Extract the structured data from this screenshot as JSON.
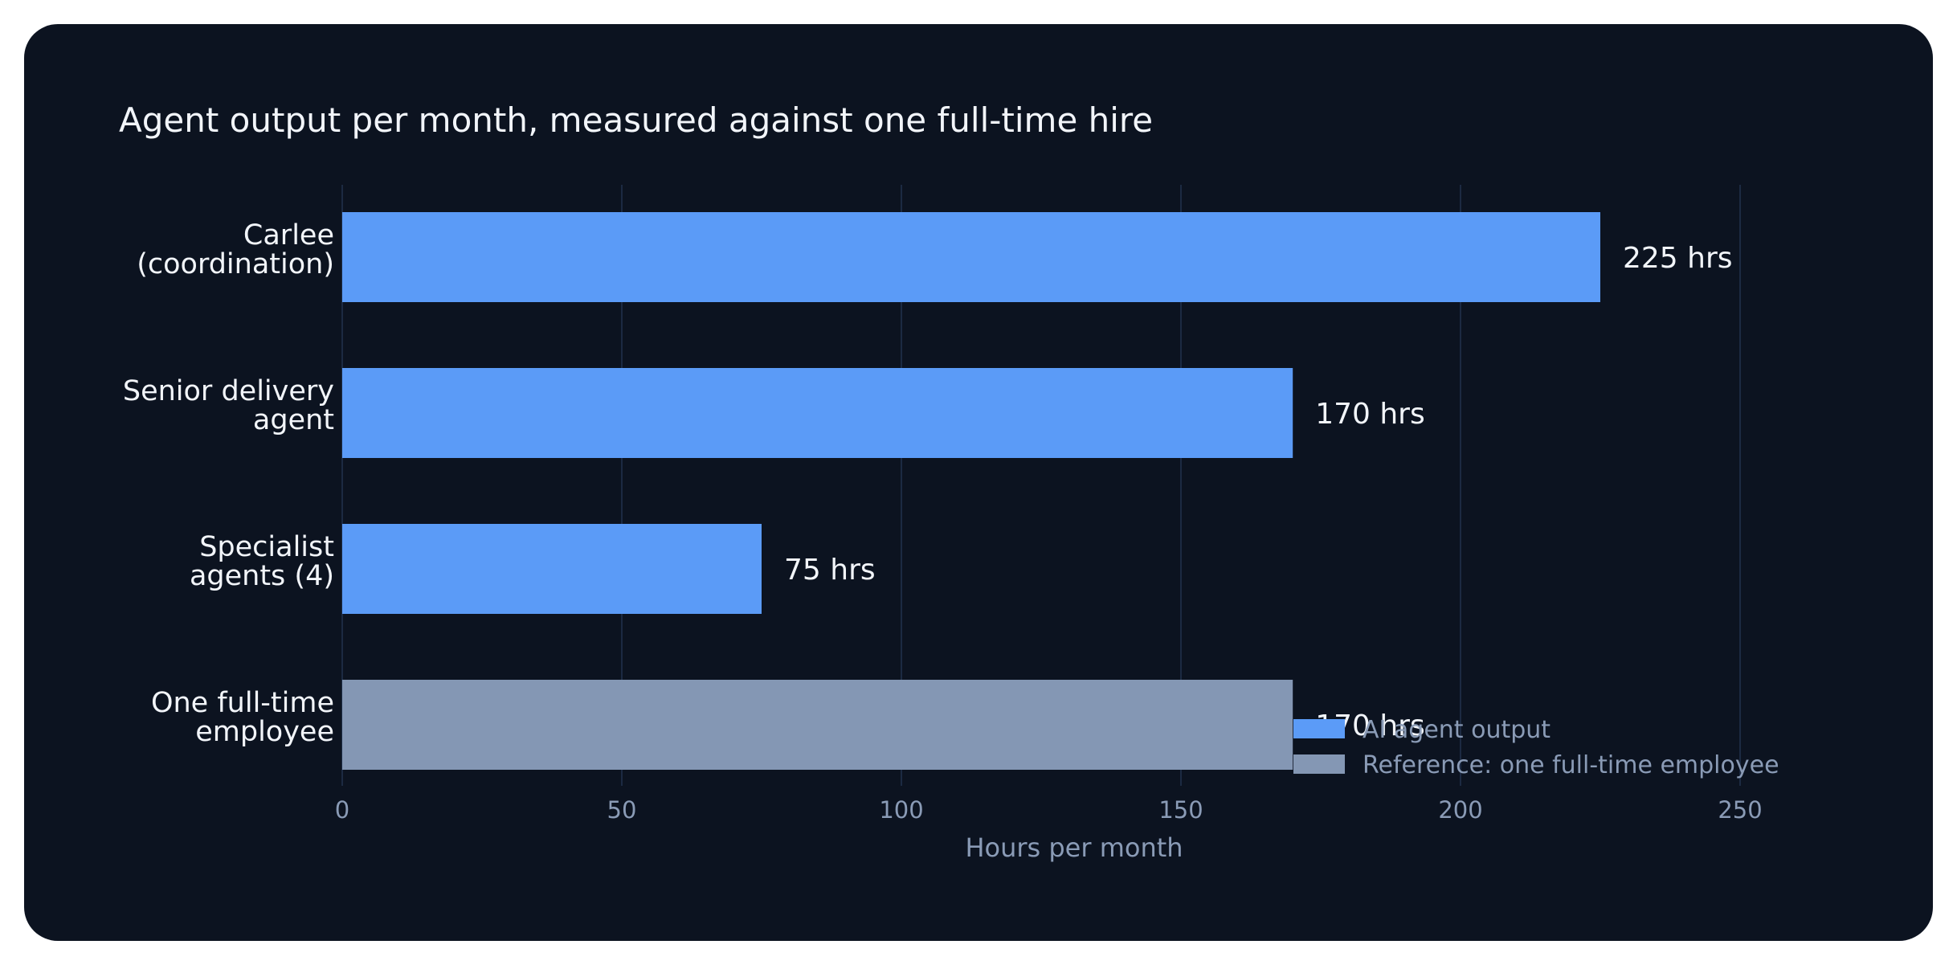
{
  "chart_data": {
    "type": "bar",
    "orientation": "horizontal",
    "title": "Agent output per month, measured against one full-time hire",
    "xlabel": "Hours per month",
    "ylabel": "",
    "xlim": [
      0,
      260
    ],
    "x_ticks": [
      0,
      50,
      100,
      150,
      200,
      250
    ],
    "x_tick_labels": [
      "0",
      "50",
      "100",
      "150",
      "200",
      "250"
    ],
    "grid": true,
    "legend_position": "bottom-right",
    "categories": [
      [
        "Carlee",
        "(coordination)"
      ],
      [
        "Senior delivery",
        "agent"
      ],
      [
        "Specialist",
        "agents (4)"
      ],
      [
        "One full-time",
        "employee"
      ]
    ],
    "values": [
      225,
      170,
      75,
      170
    ],
    "value_labels": [
      "225 hrs",
      "170 hrs",
      "75 hrs",
      "170 hrs"
    ],
    "bar_series": [
      "ai",
      "ai",
      "ai",
      "reference"
    ],
    "series": [
      {
        "id": "ai",
        "name": "AI agent output",
        "color": "#5b9bf7"
      },
      {
        "id": "reference",
        "name": "Reference: one full-time employee",
        "color": "#8497b4"
      }
    ],
    "colors": {
      "background": "#0c1320",
      "grid": "#1c2a42",
      "text": "#f2f5fa",
      "muted_text": "#8a9bb6"
    }
  }
}
